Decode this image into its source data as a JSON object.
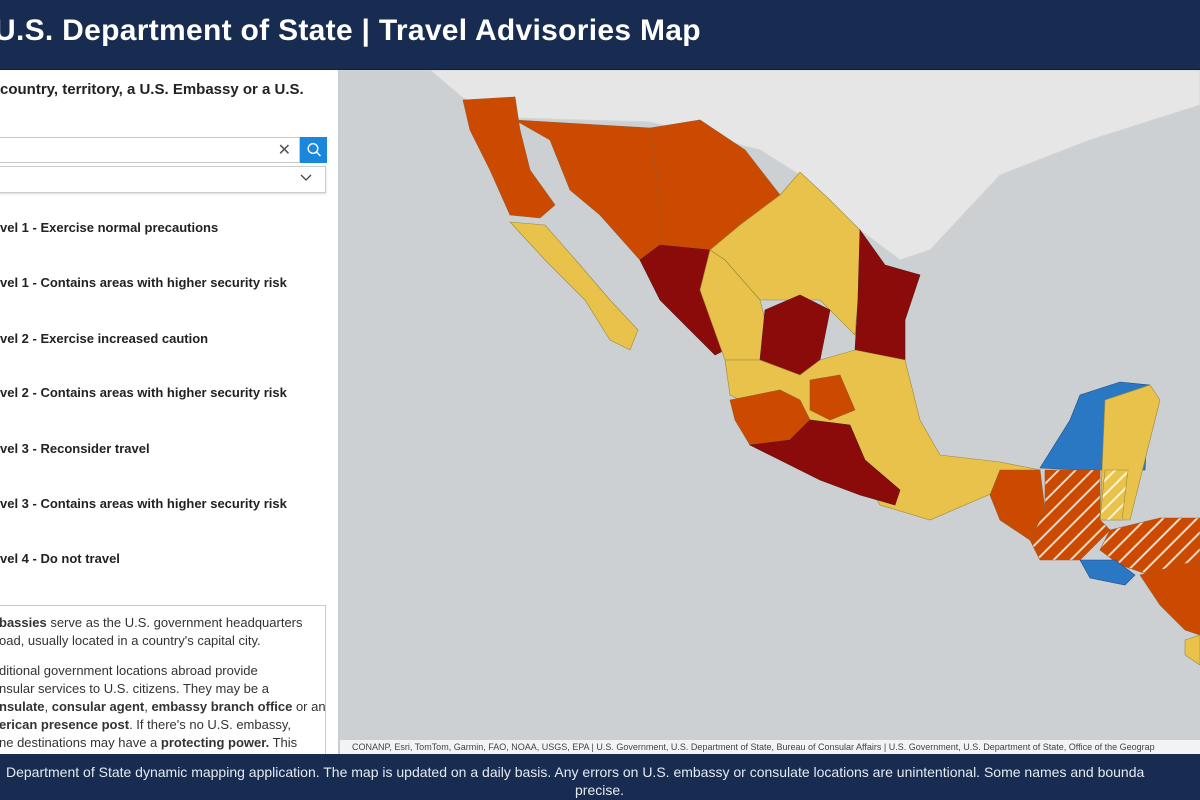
{
  "header": {
    "title": "U.S. Department of State | Travel Advisories Map"
  },
  "sidebar": {
    "prompt": "country, territory, a U.S. Embassy or a U.S.",
    "search": {
      "value": "",
      "placeholder": "",
      "clear_icon": "close-icon",
      "search_icon": "search-icon",
      "button_color": "#1a87dc"
    },
    "dropdown": {
      "value": "",
      "icon": "chevron-down-icon"
    },
    "legend": [
      "vel 1 - Exercise normal precautions",
      "vel 1 - Contains areas with higher security risk",
      "vel 2 - Exercise increased caution",
      "vel 2 - Contains areas with higher security risk",
      "vel 3 - Reconsider travel",
      "vel 3 - Contains areas with higher security risk",
      "vel 4 - Do not travel"
    ],
    "info": {
      "p1_bold": "bassies",
      "p1": " serve as the U.S. government headquarters",
      "p1b": "oad, usually located in a country's capital city.",
      "p2a": "ditional government locations abroad provide",
      "p2b": "nsular services to U.S. citizens. They may be a",
      "p2c_b1": "nsulate",
      "p2c_t1": ", ",
      "p2c_b2": "consular agent",
      "p2c_t2": ", ",
      "p2c_b3": "embassy branch office",
      "p2c_t3": " or an",
      "p2d_b": "erican presence post",
      "p2d": ". If there's no U.S. embassy,",
      "p2e": "ne destinations may have a ",
      "p2e_b": "protecting power.",
      "p2e2": " This"
    }
  },
  "map": {
    "attribution": "CONANP, Esri, TomTom, Garmin, FAO, NOAA, USGS, EPA | U.S. Government, U.S. Department of State, Bureau of Consular Affairs | U.S. Government, U.S. Department of State, Office of the Geograp",
    "colors": {
      "water": "#ccd0d3",
      "land": "#e6e6e6",
      "level1": "#2a77c4",
      "level2": "#e8c24b",
      "level3": "#cc4a00",
      "level4": "#8b0a0a"
    }
  },
  "footer": {
    "line1": "Department of State dynamic mapping application. The map is updated on a daily basis.  Any errors on U.S. embassy or consulate locations are unintentional. Some names and bounda",
    "line2": "precise."
  }
}
